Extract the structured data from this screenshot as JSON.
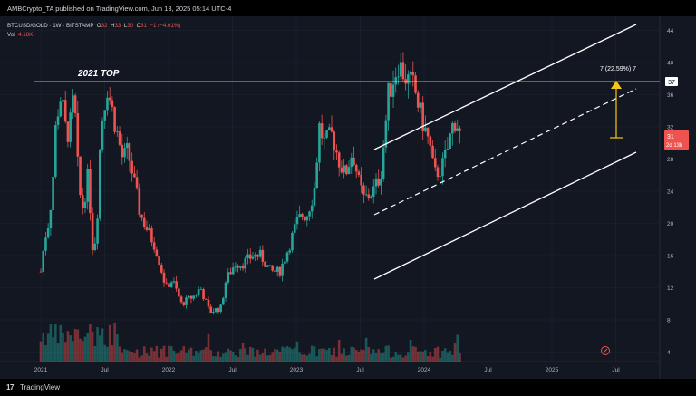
{
  "header": {
    "publisher": "AMBCrypto_TA published on TradingView.com, Jun 13, 2025 05:14 UTC-4"
  },
  "legend": {
    "symbol": "BTCUSD/GOLD · 1W · BITSTAMP",
    "open_label": "O",
    "open": "32",
    "high_label": "H",
    "high": "33",
    "low_label": "L",
    "low": "30",
    "close_label": "C",
    "close": "31",
    "change": "−1 (−4.61%)",
    "volume_label": "Vol",
    "volume": "4.18K"
  },
  "annotations": {
    "top_label": "2021 TOP",
    "measure_label": "7 (22.59%) 7"
  },
  "price_axis": {
    "ticks": [
      "44",
      "40",
      "36",
      "32",
      "28",
      "24",
      "20",
      "16",
      "12",
      "8",
      "4"
    ],
    "level_badge": "37",
    "price_badge": "31",
    "countdown": "2d 13h"
  },
  "time_axis": {
    "labels": [
      "2021",
      "Jul",
      "2022",
      "Jul",
      "2023",
      "Jul",
      "2024",
      "Jul",
      "2025",
      "Jul"
    ]
  },
  "footer": {
    "logo": "17",
    "brand": "TradingView"
  },
  "colors": {
    "up": "#26a69a",
    "down": "#ef5350",
    "level": "#ffffff",
    "measure": "#f5c518",
    "background": "#131722"
  }
}
